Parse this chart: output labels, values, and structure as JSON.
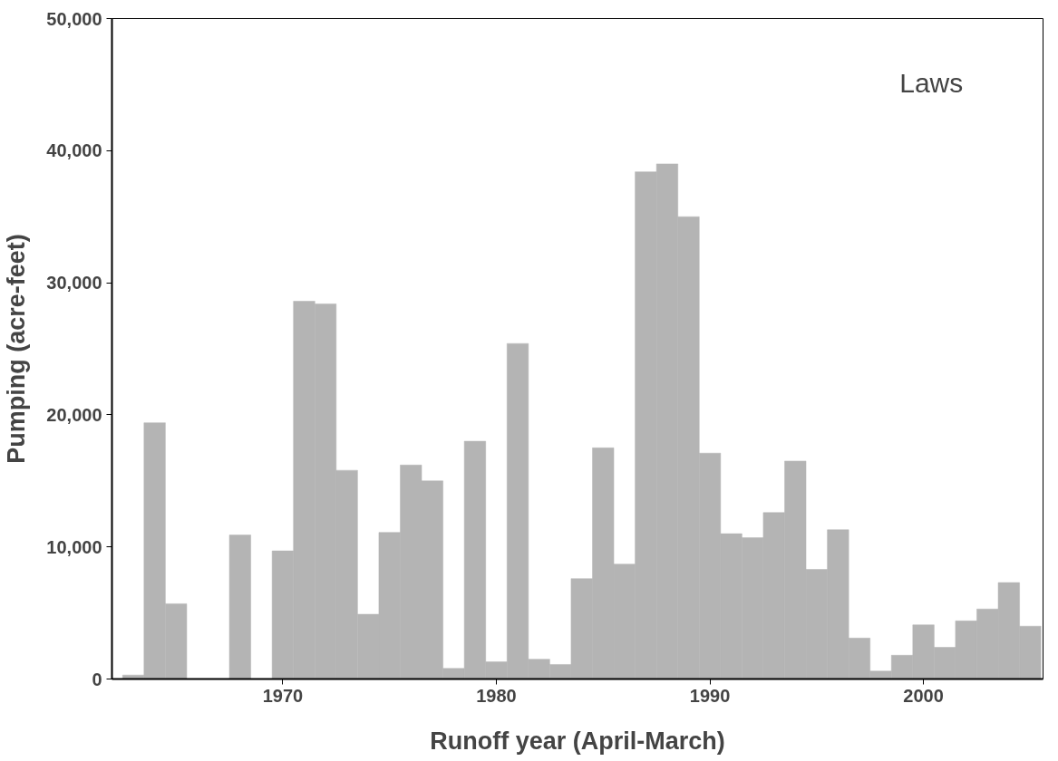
{
  "chart_data": {
    "type": "bar",
    "xlabel": "Runoff year (April-March)",
    "ylabel": "Pumping (acre-feet)",
    "annotations": [
      "Laws"
    ],
    "x": [
      1963,
      1964,
      1965,
      1966,
      1967,
      1968,
      1969,
      1970,
      1971,
      1972,
      1973,
      1974,
      1975,
      1976,
      1977,
      1978,
      1979,
      1980,
      1981,
      1982,
      1983,
      1984,
      1985,
      1986,
      1987,
      1988,
      1989,
      1990,
      1991,
      1992,
      1993,
      1994,
      1995,
      1996,
      1997,
      1998,
      1999,
      2000,
      2001,
      2002,
      2003,
      2004,
      2005
    ],
    "values": [
      300,
      19400,
      5700,
      null,
      null,
      10900,
      null,
      9700,
      28600,
      28400,
      15800,
      4900,
      11100,
      16200,
      15000,
      800,
      18000,
      1300,
      25400,
      1500,
      1100,
      7600,
      17500,
      8700,
      38400,
      39000,
      35000,
      17100,
      11000,
      10700,
      12600,
      16500,
      8300,
      11300,
      3100,
      600,
      1800,
      4100,
      2400,
      4400,
      5300,
      7300,
      4000
    ],
    "color": "#b4b4b4",
    "xlim": [
      1962,
      2005.6
    ],
    "ylim": [
      0,
      50000
    ],
    "xticks": [
      1970,
      1980,
      1990,
      2000
    ],
    "yticks": [
      {
        "value": 0,
        "label": "0"
      },
      {
        "value": 10000,
        "label": "10,000"
      },
      {
        "value": 20000,
        "label": "20,000"
      },
      {
        "value": 30000,
        "label": "30,000"
      },
      {
        "value": 40000,
        "label": "40,000"
      },
      {
        "value": 50000,
        "label": "50,000"
      }
    ],
    "grid": false
  }
}
